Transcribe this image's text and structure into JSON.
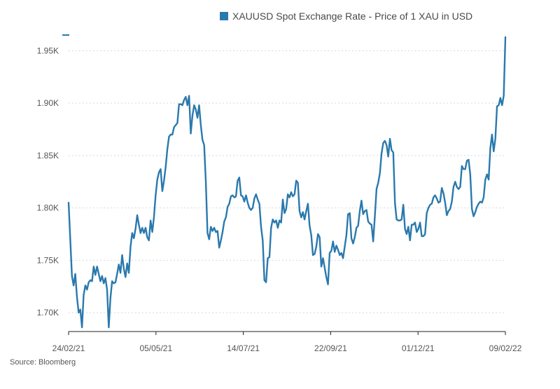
{
  "legend": {
    "label": "XAUUSD Spot Exchange Rate - Price of 1 XAU in USD"
  },
  "source": "Source: Bloomberg",
  "colors": {
    "series": "#2a79ad",
    "grid": "#d9d9d9",
    "axis": "#222222",
    "text": "#555555"
  },
  "chart_data": {
    "type": "line",
    "title": "",
    "xlabel": "",
    "ylabel": "",
    "x_tick_labels": [
      "24/02/21",
      "05/05/21",
      "14/07/21",
      "22/09/21",
      "01/12/21",
      "09/02/22"
    ],
    "y_tick_labels": [
      "1.70K",
      "1.75K",
      "1.80K",
      "1.85K",
      "1.90K",
      "1.95K"
    ],
    "y_tick_values": [
      1700,
      1750,
      1800,
      1850,
      1900,
      1950
    ],
    "ylim": [
      1682,
      1965
    ],
    "grid": "horizontal dotted",
    "legend_position": "top",
    "series": [
      {
        "name": "XAUUSD Spot Exchange Rate - Price of 1 XAU in USD",
        "values": [
          1805,
          1770,
          1735,
          1726,
          1737,
          1715,
          1700,
          1703,
          1686,
          1717,
          1726,
          1722,
          1729,
          1731,
          1730,
          1744,
          1736,
          1744,
          1737,
          1730,
          1735,
          1728,
          1733,
          1722,
          1686,
          1714,
          1730,
          1728,
          1729,
          1737,
          1746,
          1738,
          1755,
          1742,
          1734,
          1747,
          1738,
          1763,
          1776,
          1771,
          1780,
          1793,
          1784,
          1776,
          1781,
          1776,
          1781,
          1772,
          1769,
          1788,
          1777,
          1791,
          1812,
          1827,
          1834,
          1837,
          1816,
          1826,
          1839,
          1856,
          1868,
          1870,
          1870,
          1877,
          1879,
          1881,
          1899,
          1899,
          1898,
          1903,
          1906,
          1898,
          1907,
          1871,
          1888,
          1898,
          1894,
          1886,
          1898,
          1879,
          1865,
          1860,
          1825,
          1776,
          1770,
          1782,
          1778,
          1781,
          1777,
          1778,
          1762,
          1769,
          1777,
          1787,
          1791,
          1801,
          1804,
          1811,
          1812,
          1810,
          1811,
          1826,
          1829,
          1812,
          1811,
          1806,
          1812,
          1805,
          1800,
          1798,
          1800,
          1809,
          1813,
          1808,
          1804,
          1782,
          1769,
          1731,
          1729,
          1752,
          1753,
          1781,
          1789,
          1786,
          1788,
          1781,
          1788,
          1786,
          1808,
          1795,
          1799,
          1813,
          1810,
          1815,
          1811,
          1813,
          1826,
          1824,
          1797,
          1791,
          1796,
          1789,
          1797,
          1804,
          1783,
          1774,
          1755,
          1756,
          1763,
          1775,
          1772,
          1744,
          1752,
          1743,
          1734,
          1727,
          1757,
          1759,
          1768,
          1758,
          1764,
          1760,
          1755,
          1757,
          1752,
          1763,
          1774,
          1794,
          1795,
          1771,
          1766,
          1772,
          1781,
          1783,
          1797,
          1807,
          1794,
          1797,
          1798,
          1787,
          1785,
          1784,
          1768,
          1792,
          1818,
          1824,
          1833,
          1852,
          1862,
          1864,
          1860,
          1849,
          1866,
          1855,
          1853,
          1805,
          1789,
          1788,
          1788,
          1789,
          1803,
          1780,
          1775,
          1782,
          1769,
          1784,
          1784,
          1786,
          1777,
          1780,
          1786,
          1773,
          1773,
          1775,
          1795,
          1800,
          1803,
          1804,
          1810,
          1812,
          1809,
          1805,
          1806,
          1819,
          1814,
          1805,
          1793,
          1797,
          1799,
          1806,
          1820,
          1825,
          1820,
          1818,
          1820,
          1840,
          1837,
          1837,
          1845,
          1846,
          1832,
          1799,
          1792,
          1796,
          1801,
          1804,
          1806,
          1805,
          1810,
          1827,
          1832,
          1827,
          1857,
          1870,
          1854,
          1866,
          1897,
          1898,
          1905,
          1898,
          1907,
          1963
        ]
      }
    ]
  }
}
